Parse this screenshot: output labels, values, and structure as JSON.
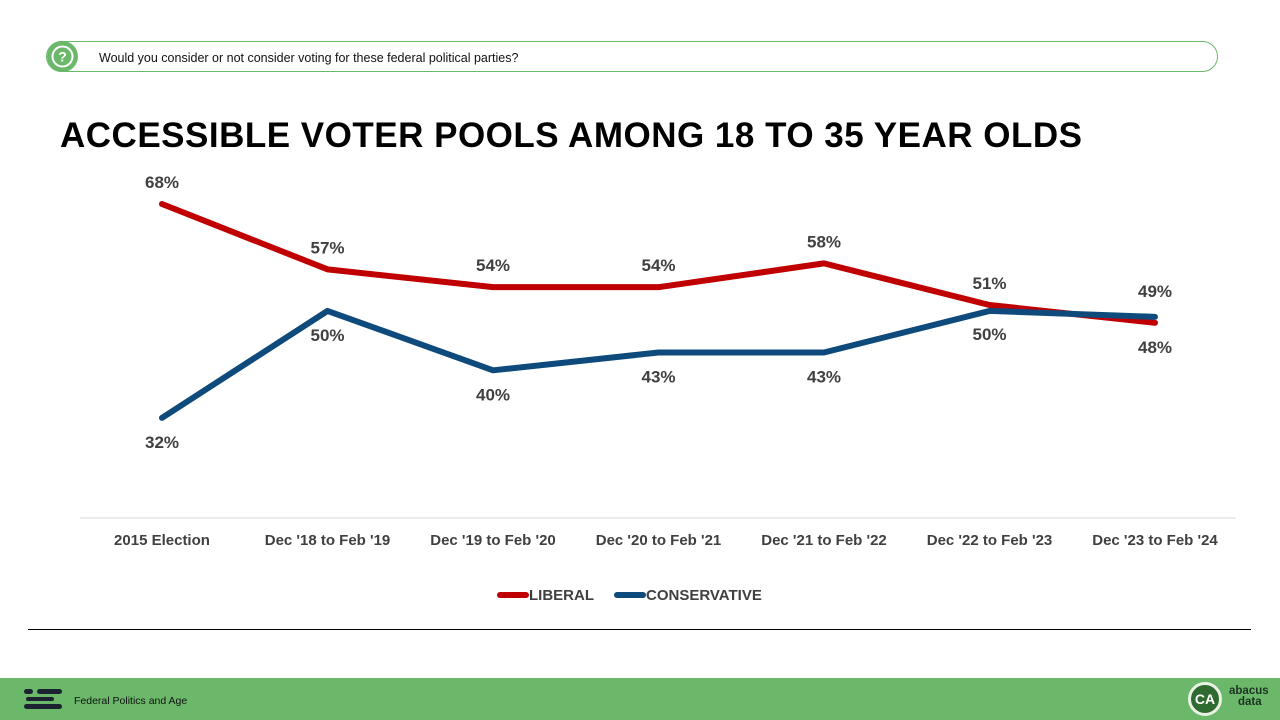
{
  "question": {
    "text": "Would you consider or not consider voting for these federal political parties?",
    "icon": "question-mark-icon"
  },
  "page_title": "ACCESSIBLE VOTER POOLS AMONG 18 TO 35 YEAR OLDS",
  "chart_data": {
    "type": "line",
    "title": "ACCESSIBLE VOTER POOLS AMONG 18 TO 35 YEAR OLDS",
    "categories": [
      "2015 Election",
      "Dec '18 to Feb '19",
      "Dec '19 to Feb '20",
      "Dec '20 to Feb '21",
      "Dec '21 to Feb '22",
      "Dec '22 to Feb '23",
      "Dec '23 to Feb '24"
    ],
    "series": [
      {
        "name": "LIBERAL",
        "color": "#c00000",
        "values": [
          68,
          57,
          54,
          54,
          58,
          51,
          48
        ],
        "labels": [
          "68%",
          "57%",
          "54%",
          "54%",
          "58%",
          "51%",
          "48%"
        ]
      },
      {
        "name": "CONSERVATIVE",
        "color": "#0e4a7c",
        "values": [
          32,
          50,
          40,
          43,
          43,
          50,
          49
        ],
        "labels": [
          "32%",
          "50%",
          "40%",
          "43%",
          "43%",
          "50%",
          "49%"
        ]
      }
    ],
    "ylim": [
      0,
      80
    ],
    "grid": false,
    "legend": "bottom-center",
    "xlabel": "",
    "ylabel": ""
  },
  "footer": {
    "text": "Federal Politics and Age",
    "brand_badge": "CA",
    "brand_name": [
      "abacus",
      "data"
    ],
    "background_color": "#6cb86a"
  }
}
